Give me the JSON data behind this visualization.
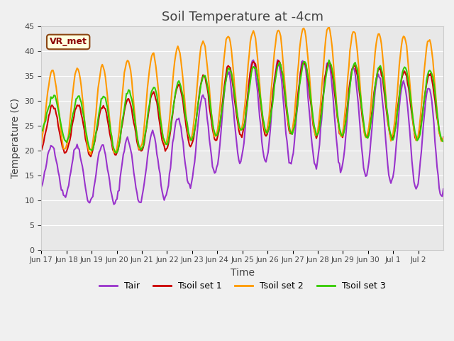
{
  "title": "Soil Temperature at -4cm",
  "xlabel": "Time",
  "ylabel": "Temperature (C)",
  "ylim": [
    0,
    45
  ],
  "yticks": [
    0,
    5,
    10,
    15,
    20,
    25,
    30,
    35,
    40,
    45
  ],
  "background_color": "#f0f0f0",
  "plot_bg_color": "#e8e8e8",
  "legend_label": "VR_met",
  "series": {
    "Tair": {
      "color": "#9933cc",
      "lw": 1.5
    },
    "Tsoil set 1": {
      "color": "#cc0000",
      "lw": 1.5
    },
    "Tsoil set 2": {
      "color": "#ff9900",
      "lw": 1.5
    },
    "Tsoil set 3": {
      "color": "#33cc00",
      "lw": 1.5
    }
  },
  "xticklabels": [
    "Jun 17",
    "Jun 18",
    "Jun 19",
    "Jun 20",
    "Jun 21",
    "Jun 22",
    "Jun 23",
    "Jun 24",
    "Jun 25",
    "Jun 26",
    "Jun 27",
    "Jun 28",
    "Jun 29",
    "Jun 30",
    "Jul 1",
    "Jul 2"
  ],
  "num_days": 16,
  "title_fontsize": 13
}
